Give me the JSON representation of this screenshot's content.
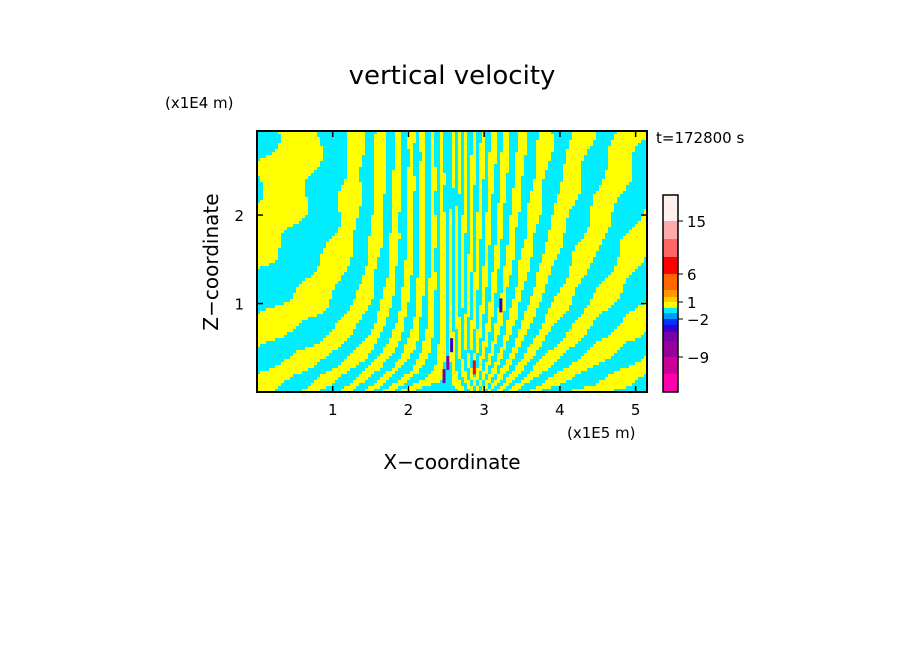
{
  "chart_data": {
    "type": "heatmap",
    "title": "vertical velocity",
    "xlabel": "X−coordinate",
    "ylabel": "Z−coordinate",
    "x_unit": "(x1E5 m)",
    "y_unit": "(x1E4 m)",
    "time_label": "t=172800 s",
    "xlim": [
      0,
      5.15
    ],
    "ylim": [
      0,
      2.95
    ],
    "x_ticks": [
      1,
      2,
      3,
      4,
      5
    ],
    "x_tick_labels": [
      "1",
      "2",
      "3",
      "4",
      "5"
    ],
    "y_ticks": [
      1,
      2
    ],
    "y_tick_labels": [
      "1",
      "2"
    ],
    "colors": {
      "positive_band": "#ffff00",
      "negative_band": "#00eeff"
    },
    "colorbar": {
      "colors": [
        "#ff00aa",
        "#cc0099",
        "#990099",
        "#7700aa",
        "#3300cc",
        "#0033ff",
        "#0099ff",
        "#00eeff",
        "#ffff00",
        "#ffcc00",
        "#ff9900",
        "#ff6600",
        "#ff0000",
        "#ff6666",
        "#ffaaaa",
        "#ffeeee"
      ],
      "labels": [
        {
          "value": -9,
          "text": "−9"
        },
        {
          "value": -2,
          "text": "−2"
        },
        {
          "value": 1,
          "text": "1"
        },
        {
          "value": 6,
          "text": "6"
        },
        {
          "value": 15,
          "text": "15"
        }
      ]
    }
  }
}
